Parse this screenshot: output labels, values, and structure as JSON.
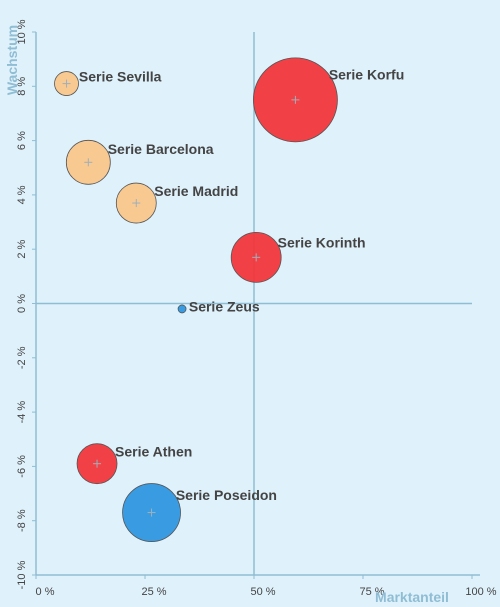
{
  "chart_data": {
    "type": "bubble",
    "xlabel": "Marktanteil",
    "ylabel": "Wachstum",
    "xlim": [
      0,
      100
    ],
    "ylim": [
      -10,
      10
    ],
    "x_ticks": [
      "0 %",
      "25 %",
      "50 %",
      "75 %",
      "100 %"
    ],
    "y_ticks": [
      "10 %",
      "8 %",
      "6 %",
      "4 %",
      "2 %",
      "0 %",
      "-2 %",
      "-4 %",
      "-6 %",
      "-8 %",
      "-10 %"
    ],
    "x_divider": 50,
    "y_divider": 0,
    "series": [
      {
        "name": "Serie Sevilla",
        "x": 7,
        "y": 8.1,
        "size": 12,
        "color": "#f9c68b"
      },
      {
        "name": "Serie Barcelona",
        "x": 12,
        "y": 5.2,
        "size": 22,
        "color": "#f9c68b"
      },
      {
        "name": "Serie Madrid",
        "x": 23,
        "y": 3.7,
        "size": 20,
        "color": "#f9c68b"
      },
      {
        "name": "Serie Korfu",
        "x": 59.5,
        "y": 7.5,
        "size": 42,
        "color": "#f2373c"
      },
      {
        "name": "Serie Korinth",
        "x": 50.5,
        "y": 1.7,
        "size": 25,
        "color": "#f2373c"
      },
      {
        "name": "Serie Zeus",
        "x": 33.5,
        "y": -0.2,
        "size": 4,
        "color": "#2f97e0"
      },
      {
        "name": "Serie Athen",
        "x": 14,
        "y": -5.9,
        "size": 20,
        "color": "#f2373c"
      },
      {
        "name": "Serie Poseidon",
        "x": 26.5,
        "y": -7.7,
        "size": 29,
        "color": "#2f97e0"
      }
    ]
  }
}
